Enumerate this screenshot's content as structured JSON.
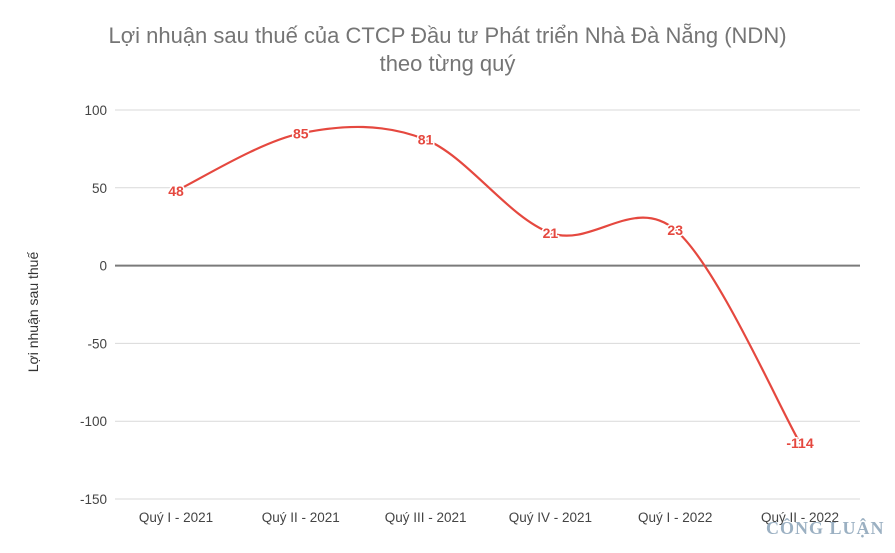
{
  "chart_data": {
    "type": "line",
    "title_lines": [
      "Lợi nhuận sau thuế của CTCP Đầu tư Phát triển Nhà Đà Nẵng (NDN)",
      "theo từng quý"
    ],
    "xlabel": "",
    "ylabel": "Lợi nhuận sau thuế",
    "categories": [
      "Quý I - 2021",
      "Quý II - 2021",
      "Quý III - 2021",
      "Quý IV - 2021",
      "Quý I - 2022",
      "Quý II - 2022"
    ],
    "series": [
      {
        "values": [
          48,
          85,
          81,
          21,
          23,
          -114
        ],
        "color": "#e5483f"
      }
    ],
    "data_labels": [
      "48",
      "85",
      "81",
      "21",
      "23",
      "-114"
    ],
    "ylim": [
      -150,
      100
    ],
    "yticks": [
      100,
      50,
      0,
      -50,
      -100,
      -150
    ],
    "ytick_labels": [
      "100",
      "50",
      "0",
      "-50",
      "-100",
      "-150"
    ],
    "grid": true,
    "smooth": true,
    "zero_line_color": "#7a7a7a",
    "grid_color": "#d9d9d9"
  },
  "watermark": "CÔNG LUẬN"
}
